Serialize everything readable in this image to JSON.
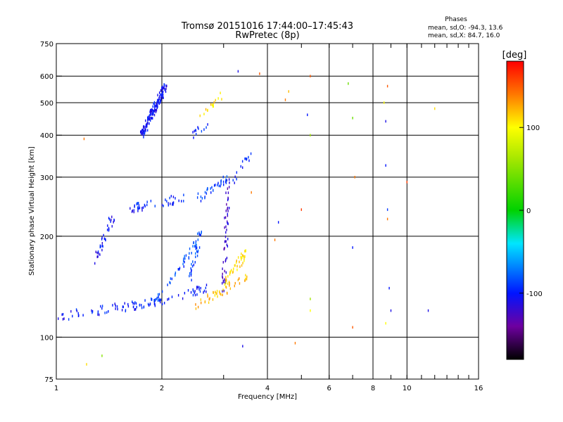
{
  "chart_data": {
    "type": "scatter",
    "title": "Tromsø 20151016 17:44:00–17:45:43",
    "subtitle": "RwPretec (8p)",
    "stats": {
      "header": "Phases",
      "line_O": "mean, sd,O: -94.3, 13.6",
      "line_X": "mean, sd,X:  84.7, 16.0"
    },
    "xlabel": "Frequency [MHz]",
    "ylabel": "Stationary phase Virtual Height [km]",
    "x_scale": "log",
    "y_scale": "log",
    "xlim": [
      1,
      16
    ],
    "ylim": [
      75,
      750
    ],
    "x_ticks": [
      1,
      2,
      4,
      6,
      8,
      10,
      16
    ],
    "y_ticks": [
      75,
      100,
      200,
      300,
      400,
      500,
      600,
      750
    ],
    "grid": true,
    "colorbar": {
      "label": "[deg]",
      "range": [
        -180,
        180
      ],
      "ticks": [
        100,
        0,
        -100
      ]
    },
    "series": [
      {
        "traces": [
          {
            "x0": 1.0,
            "x1": 2.0,
            "y0": 115,
            "y1": 128,
            "phase": -100,
            "n": 75
          },
          {
            "x0": 2.0,
            "x1": 2.7,
            "y0": 128,
            "y1": 140,
            "phase": -100,
            "n": 30
          },
          {
            "x0": 1.9,
            "x1": 2.6,
            "y0": 125,
            "y1": 200,
            "phase": -85,
            "n": 45
          },
          {
            "x0": 2.4,
            "x1": 2.6,
            "y0": 150,
            "y1": 210,
            "phase": -85,
            "n": 30
          },
          {
            "x0": 3.0,
            "x1": 3.1,
            "y0": 140,
            "y1": 300,
            "phase": -120,
            "n": 60
          },
          {
            "x0": 3.2,
            "x1": 3.6,
            "y0": 290,
            "y1": 355,
            "phase": -100,
            "n": 15
          },
          {
            "x0": 2.5,
            "x1": 3.5,
            "y0": 125,
            "y1": 150,
            "phase": 120,
            "n": 45
          },
          {
            "x0": 3.0,
            "x1": 3.5,
            "y0": 145,
            "y1": 180,
            "phase": 110,
            "n": 40
          },
          {
            "x0": 1.6,
            "x1": 2.3,
            "y0": 240,
            "y1": 260,
            "phase": -100,
            "n": 45
          },
          {
            "x0": 2.5,
            "x1": 3.1,
            "y0": 255,
            "y1": 300,
            "phase": -90,
            "n": 35
          },
          {
            "x0": 1.3,
            "x1": 1.45,
            "y0": 170,
            "y1": 230,
            "phase": -105,
            "n": 35
          },
          {
            "x0": 1.75,
            "x1": 2.05,
            "y0": 400,
            "y1": 560,
            "phase": -105,
            "n": 150
          },
          {
            "x0": 2.4,
            "x1": 2.7,
            "y0": 400,
            "y1": 430,
            "phase": -95,
            "n": 12
          },
          {
            "x0": 2.5,
            "x1": 3.1,
            "y0": 440,
            "y1": 560,
            "phase": 110,
            "n": 15
          }
        ]
      }
    ],
    "scatter": [
      {
        "x": 1.35,
        "y": 88,
        "phase": 50
      },
      {
        "x": 1.22,
        "y": 83,
        "phase": 110
      },
      {
        "x": 4.8,
        "y": 96,
        "phase": 140
      },
      {
        "x": 3.4,
        "y": 94,
        "phase": -110
      },
      {
        "x": 4.3,
        "y": 220,
        "phase": -100
      },
      {
        "x": 4.2,
        "y": 195,
        "phase": 140
      },
      {
        "x": 4.5,
        "y": 510,
        "phase": 140
      },
      {
        "x": 4.6,
        "y": 540,
        "phase": 120
      },
      {
        "x": 5.0,
        "y": 240,
        "phase": 160
      },
      {
        "x": 5.2,
        "y": 460,
        "phase": -100
      },
      {
        "x": 5.3,
        "y": 400,
        "phase": 60
      },
      {
        "x": 5.3,
        "y": 600,
        "phase": 150
      },
      {
        "x": 6.8,
        "y": 570,
        "phase": 40
      },
      {
        "x": 7.0,
        "y": 450,
        "phase": 40
      },
      {
        "x": 7.1,
        "y": 300,
        "phase": 140
      },
      {
        "x": 7.0,
        "y": 185,
        "phase": -100
      },
      {
        "x": 7.0,
        "y": 107,
        "phase": 150
      },
      {
        "x": 8.6,
        "y": 500,
        "phase": 100
      },
      {
        "x": 8.7,
        "y": 440,
        "phase": -110
      },
      {
        "x": 8.8,
        "y": 560,
        "phase": 150
      },
      {
        "x": 8.7,
        "y": 325,
        "phase": -100
      },
      {
        "x": 8.8,
        "y": 240,
        "phase": -90
      },
      {
        "x": 8.8,
        "y": 225,
        "phase": 140
      },
      {
        "x": 8.9,
        "y": 140,
        "phase": -100
      },
      {
        "x": 9.0,
        "y": 120,
        "phase": -110
      },
      {
        "x": 8.7,
        "y": 110,
        "phase": 100
      },
      {
        "x": 10.0,
        "y": 290,
        "phase": 160
      },
      {
        "x": 11.5,
        "y": 120,
        "phase": -110
      },
      {
        "x": 12.0,
        "y": 480,
        "phase": 110
      },
      {
        "x": 3.8,
        "y": 610,
        "phase": 150
      },
      {
        "x": 3.3,
        "y": 620,
        "phase": -110
      },
      {
        "x": 1.2,
        "y": 390,
        "phase": 140
      },
      {
        "x": 3.6,
        "y": 270,
        "phase": 140
      },
      {
        "x": 5.3,
        "y": 120,
        "phase": 100
      },
      {
        "x": 5.3,
        "y": 130,
        "phase": 60
      }
    ]
  }
}
